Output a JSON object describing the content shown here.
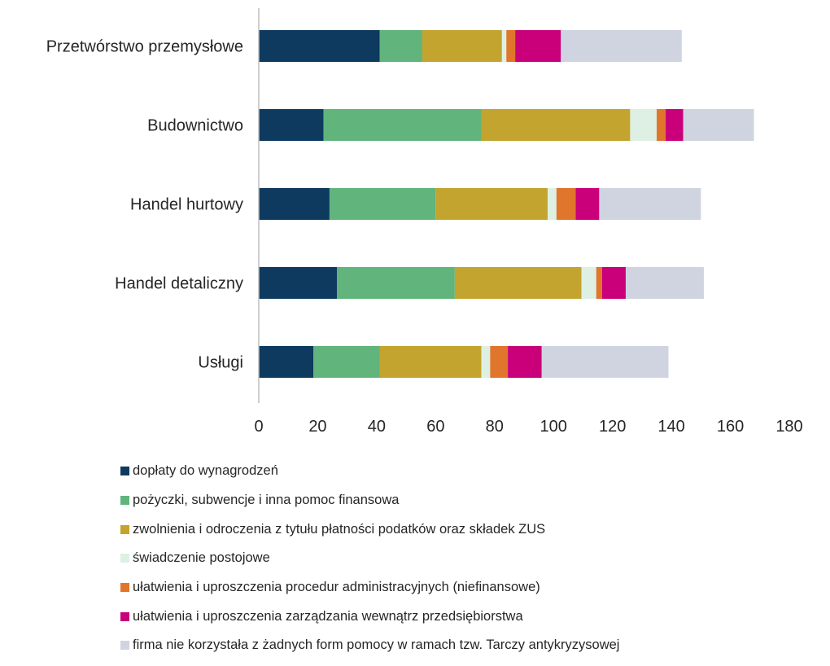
{
  "colors": {
    "axis": "#bfbfbf",
    "text": "#262626"
  },
  "chart_data": {
    "type": "bar",
    "orientation": "horizontal",
    "stacked": true,
    "title": "",
    "xlabel": "",
    "ylabel": "",
    "xlim": [
      0,
      180
    ],
    "x_ticks": [
      "0",
      "20",
      "40",
      "60",
      "80",
      "100",
      "120",
      "140",
      "160",
      "180"
    ],
    "grid": false,
    "legend_position": "bottom",
    "categories": [
      "Przetwórstwo przemysłowe",
      "Budownictwo",
      "Handel hurtowy",
      "Handel detaliczny",
      "Usługi"
    ],
    "series": [
      {
        "name": "dopłaty do wynagrodzeń",
        "color": "#0e3a5f",
        "values": [
          41,
          22,
          24,
          26.5,
          18.5
        ]
      },
      {
        "name": "pożyczki, subwencje i inna pomoc finansowa",
        "color": "#61b47c",
        "values": [
          14.5,
          53.5,
          36,
          40,
          22.5
        ]
      },
      {
        "name": "zwolnienia i odroczenia z tytułu płatności podatków oraz składek ZUS",
        "color": "#c2a42f",
        "values": [
          27,
          50.5,
          38,
          43,
          34.5
        ]
      },
      {
        "name": "świadczenie postojowe",
        "color": "#ddf0e3",
        "values": [
          1.5,
          9,
          3,
          5,
          3
        ]
      },
      {
        "name": "ułatwienia i uproszczenia procedur administracyjnych (niefinansowe)",
        "color": "#e0762c",
        "values": [
          3,
          3,
          6.5,
          2,
          6
        ]
      },
      {
        "name": "ułatwienia i uproszczenia zarządzania wewnątrz przedsiębiorstwa",
        "color": "#c9007a",
        "values": [
          15.5,
          6,
          8,
          8,
          11.5
        ]
      },
      {
        "name": "firma nie korzystała z żadnych form pomocy w ramach tzw. Tarczy antykryzysowej",
        "color": "#cfd4e0",
        "values": [
          41,
          24,
          34.5,
          26.5,
          43
        ]
      }
    ]
  }
}
